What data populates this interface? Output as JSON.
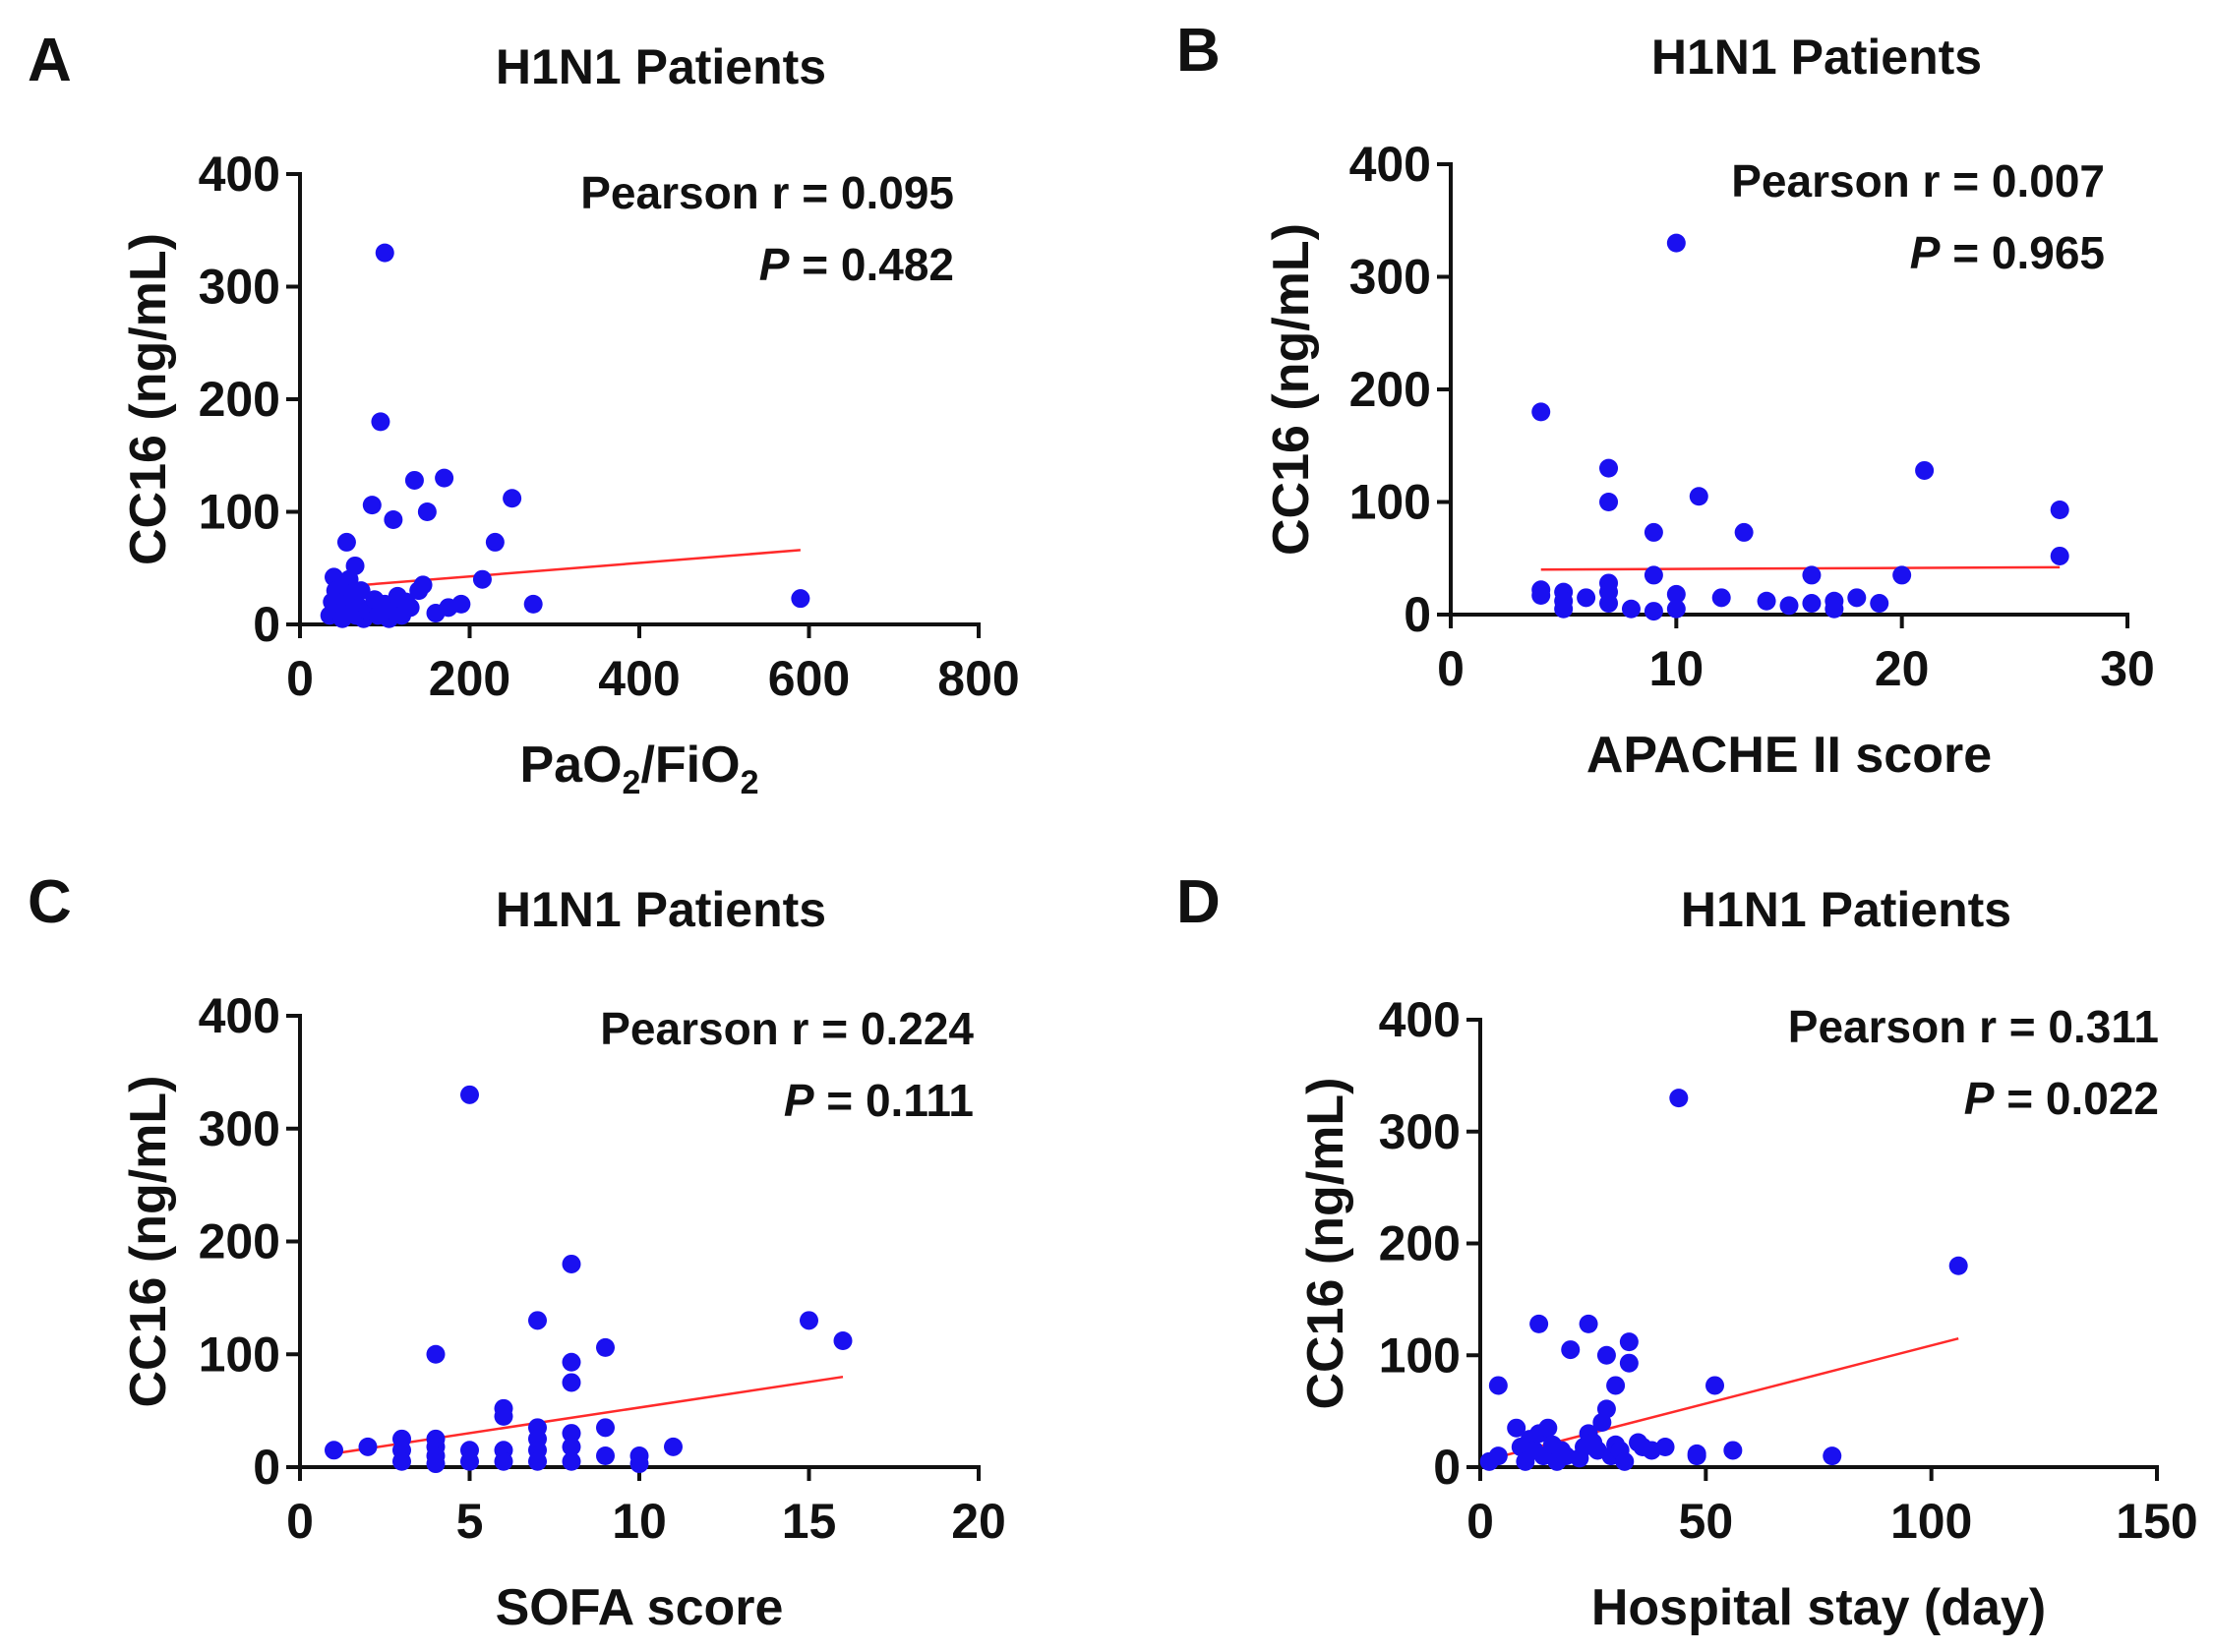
{
  "chart_data": [
    {
      "panel": "A",
      "type": "scatter",
      "title": "H1N1 Patients",
      "xlabel": "PaO",
      "xlabel_sub1": "2",
      "xlabel_mid": "/FiO",
      "xlabel_sub2": "2",
      "ylabel": "CC16 (ng/mL)",
      "xlim": [
        0,
        800
      ],
      "ylim": [
        0,
        400
      ],
      "xticks": [
        0,
        200,
        400,
        600,
        800
      ],
      "yticks": [
        0,
        100,
        200,
        300,
        400
      ],
      "stat_r": "Pearson r = 0.095",
      "stat_p_label": "P",
      "stat_p_value": " = 0.482",
      "point_color": "#1a10f0",
      "line_color": "#ff2a2a",
      "fit_line": {
        "x": [
          40,
          590
        ],
        "y": [
          33,
          66
        ]
      },
      "points": [
        [
          35,
          8
        ],
        [
          38,
          20
        ],
        [
          40,
          42
        ],
        [
          42,
          30
        ],
        [
          45,
          12
        ],
        [
          48,
          25
        ],
        [
          50,
          5
        ],
        [
          52,
          35
        ],
        [
          55,
          18
        ],
        [
          55,
          73
        ],
        [
          58,
          40
        ],
        [
          60,
          10
        ],
        [
          62,
          28
        ],
        [
          65,
          52
        ],
        [
          66,
          8
        ],
        [
          70,
          15
        ],
        [
          72,
          30
        ],
        [
          75,
          5
        ],
        [
          80,
          12
        ],
        [
          85,
          106
        ],
        [
          88,
          22
        ],
        [
          92,
          8
        ],
        [
          95,
          180
        ],
        [
          100,
          330
        ],
        [
          100,
          18
        ],
        [
          105,
          5
        ],
        [
          110,
          93
        ],
        [
          110,
          12
        ],
        [
          115,
          25
        ],
        [
          120,
          8
        ],
        [
          125,
          20
        ],
        [
          130,
          15
        ],
        [
          135,
          128
        ],
        [
          140,
          30
        ],
        [
          145,
          35
        ],
        [
          150,
          100
        ],
        [
          160,
          10
        ],
        [
          170,
          130
        ],
        [
          175,
          15
        ],
        [
          190,
          18
        ],
        [
          215,
          40
        ],
        [
          230,
          73
        ],
        [
          250,
          112
        ],
        [
          275,
          18
        ],
        [
          590,
          23
        ]
      ]
    },
    {
      "panel": "B",
      "type": "scatter",
      "title": "H1N1 Patients",
      "xlabel": "APACHE II score",
      "ylabel": "CC16 (ng/mL)",
      "xlim": [
        0,
        30
      ],
      "ylim": [
        0,
        400
      ],
      "xticks": [
        0,
        10,
        20,
        30
      ],
      "yticks": [
        0,
        100,
        200,
        300,
        400
      ],
      "stat_r": "Pearson r = 0.007",
      "stat_p_label": "P",
      "stat_p_value": " = 0.965",
      "point_color": "#1a10f0",
      "line_color": "#ff2a2a",
      "fit_line": {
        "x": [
          4,
          27
        ],
        "y": [
          40,
          42
        ]
      },
      "points": [
        [
          4,
          180
        ],
        [
          4,
          22
        ],
        [
          4,
          17
        ],
        [
          5,
          20
        ],
        [
          5,
          12
        ],
        [
          5,
          5
        ],
        [
          6,
          15
        ],
        [
          7,
          130
        ],
        [
          7,
          100
        ],
        [
          7,
          28
        ],
        [
          7,
          20
        ],
        [
          7,
          10
        ],
        [
          8,
          5
        ],
        [
          9,
          73
        ],
        [
          9,
          35
        ],
        [
          9,
          3
        ],
        [
          10,
          330
        ],
        [
          10,
          18
        ],
        [
          10,
          5
        ],
        [
          11,
          105
        ],
        [
          12,
          15
        ],
        [
          13,
          73
        ],
        [
          14,
          12
        ],
        [
          15,
          8
        ],
        [
          16,
          35
        ],
        [
          16,
          10
        ],
        [
          17,
          5
        ],
        [
          17,
          12
        ],
        [
          18,
          15
        ],
        [
          19,
          10
        ],
        [
          20,
          35
        ],
        [
          21,
          128
        ],
        [
          27,
          93
        ],
        [
          27,
          52
        ]
      ]
    },
    {
      "panel": "C",
      "type": "scatter",
      "title": "H1N1 Patients",
      "xlabel": "SOFA score",
      "ylabel": "CC16 (ng/mL)",
      "xlim": [
        0,
        20
      ],
      "ylim": [
        0,
        400
      ],
      "xticks": [
        0,
        5,
        10,
        15,
        20
      ],
      "yticks": [
        0,
        100,
        200,
        300,
        400
      ],
      "stat_r": "Pearson r = 0.224",
      "stat_p_label": "P",
      "stat_p_value": " = 0.111",
      "point_color": "#1a10f0",
      "line_color": "#ff2a2a",
      "fit_line": {
        "x": [
          1,
          16
        ],
        "y": [
          12,
          80
        ]
      },
      "points": [
        [
          1,
          15
        ],
        [
          2,
          18
        ],
        [
          3,
          25
        ],
        [
          3,
          15
        ],
        [
          3,
          5
        ],
        [
          4,
          100
        ],
        [
          4,
          25
        ],
        [
          4,
          18
        ],
        [
          4,
          10
        ],
        [
          4,
          3
        ],
        [
          5,
          330
        ],
        [
          5,
          15
        ],
        [
          5,
          5
        ],
        [
          6,
          52
        ],
        [
          6,
          45
        ],
        [
          6,
          15
        ],
        [
          6,
          5
        ],
        [
          7,
          130
        ],
        [
          7,
          35
        ],
        [
          7,
          25
        ],
        [
          7,
          15
        ],
        [
          7,
          5
        ],
        [
          8,
          180
        ],
        [
          8,
          93
        ],
        [
          8,
          75
        ],
        [
          8,
          30
        ],
        [
          8,
          18
        ],
        [
          8,
          5
        ],
        [
          9,
          106
        ],
        [
          9,
          35
        ],
        [
          9,
          10
        ],
        [
          10,
          10
        ],
        [
          10,
          3
        ],
        [
          11,
          18
        ],
        [
          15,
          130
        ],
        [
          16,
          112
        ]
      ]
    },
    {
      "panel": "D",
      "type": "scatter",
      "title": "H1N1 Patients",
      "xlabel": "Hospital stay (day)",
      "ylabel": "CC16 (ng/mL)",
      "xlim": [
        0,
        150
      ],
      "ylim": [
        0,
        400
      ],
      "xticks": [
        0,
        50,
        100,
        150
      ],
      "yticks": [
        0,
        100,
        200,
        300,
        400
      ],
      "stat_r": "Pearson r = 0.311",
      "stat_p_label": "P",
      "stat_p_value": " = 0.022",
      "point_color": "#1a10f0",
      "line_color": "#ff2a2a",
      "fit_line": {
        "x": [
          3,
          106
        ],
        "y": [
          8,
          115
        ]
      },
      "points": [
        [
          2,
          5
        ],
        [
          4,
          10
        ],
        [
          4,
          73
        ],
        [
          8,
          35
        ],
        [
          9,
          18
        ],
        [
          10,
          5
        ],
        [
          11,
          25
        ],
        [
          12,
          15
        ],
        [
          13,
          128
        ],
        [
          13,
          30
        ],
        [
          14,
          10
        ],
        [
          15,
          35
        ],
        [
          16,
          20
        ],
        [
          17,
          5
        ],
        [
          18,
          15
        ],
        [
          19,
          10
        ],
        [
          20,
          105
        ],
        [
          22,
          8
        ],
        [
          23,
          18
        ],
        [
          24,
          128
        ],
        [
          24,
          30
        ],
        [
          25,
          22
        ],
        [
          26,
          15
        ],
        [
          27,
          40
        ],
        [
          28,
          100
        ],
        [
          28,
          52
        ],
        [
          29,
          10
        ],
        [
          30,
          73
        ],
        [
          30,
          20
        ],
        [
          31,
          15
        ],
        [
          32,
          5
        ],
        [
          33,
          112
        ],
        [
          33,
          93
        ],
        [
          35,
          22
        ],
        [
          36,
          18
        ],
        [
          38,
          15
        ],
        [
          41,
          18
        ],
        [
          44,
          330
        ],
        [
          48,
          10
        ],
        [
          48,
          12
        ],
        [
          52,
          73
        ],
        [
          56,
          15
        ],
        [
          78,
          10
        ],
        [
          106,
          180
        ]
      ]
    }
  ]
}
